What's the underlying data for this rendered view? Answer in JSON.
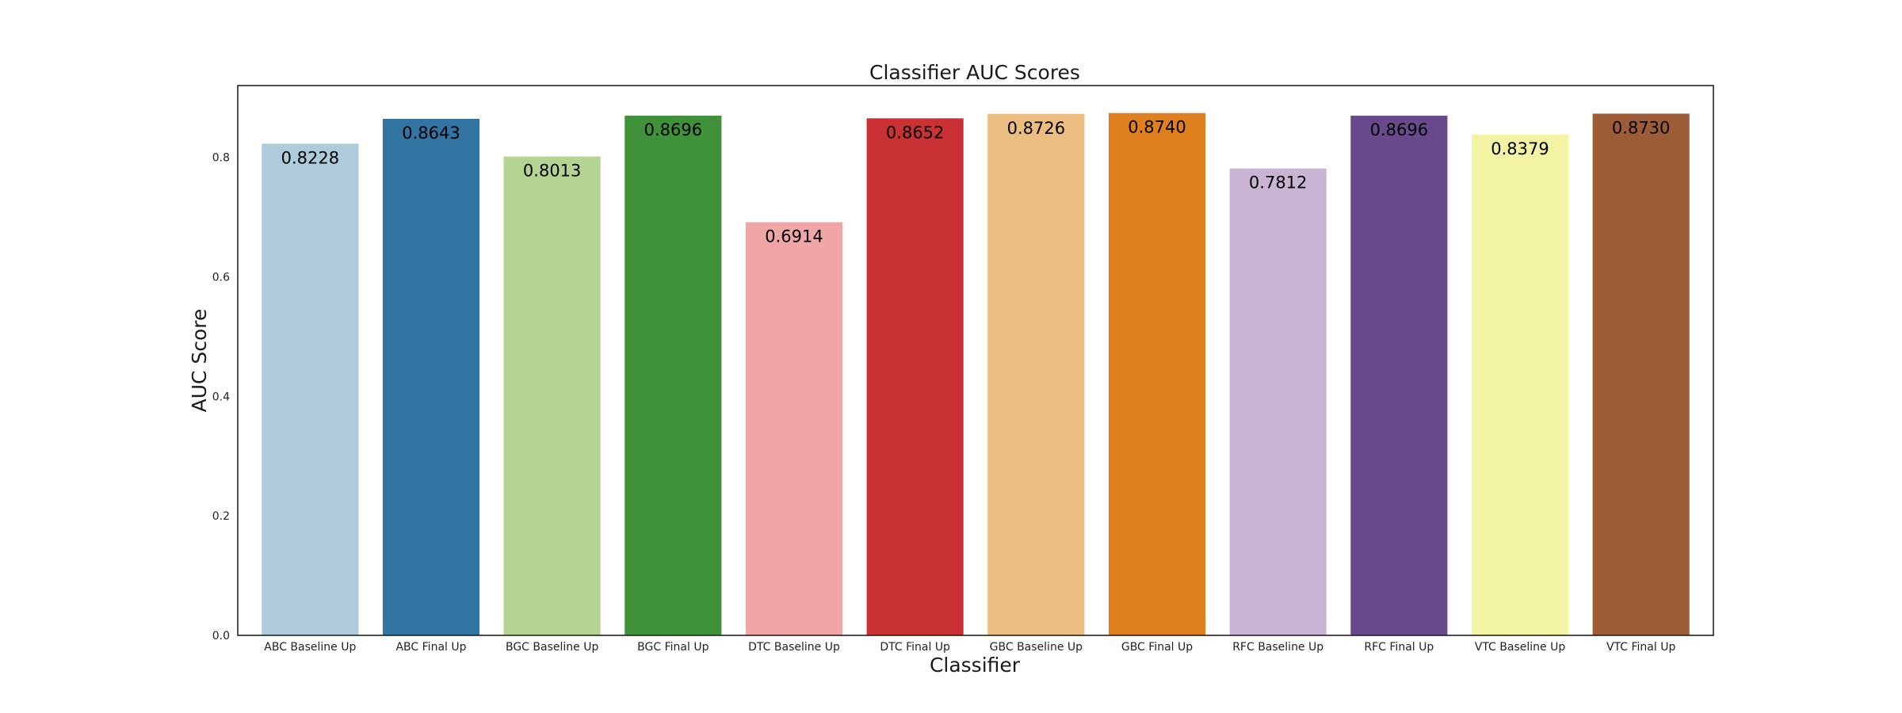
{
  "chart_data": {
    "type": "bar",
    "title": "Classifier AUC Scores",
    "xlabel": "Classifier",
    "ylabel": "AUC Score",
    "ylim": [
      0,
      0.92
    ],
    "yticks": [
      "0.0",
      "0.2",
      "0.4",
      "0.6",
      "0.8"
    ],
    "grid": false,
    "legend": "none",
    "categories": [
      "ABC Baseline Up",
      "ABC Final Up",
      "BGC Baseline Up",
      "BGC Final Up",
      "DTC Baseline Up",
      "DTC Final Up",
      "GBC Baseline Up",
      "GBC Final Up",
      "RFC Baseline Up",
      "RFC Final Up",
      "VTC Baseline Up",
      "VTC Final Up"
    ],
    "values": [
      0.8228,
      0.8643,
      0.8013,
      0.8696,
      0.6914,
      0.8652,
      0.8726,
      0.874,
      0.7812,
      0.8696,
      0.8379,
      0.873
    ],
    "value_labels": [
      "0.8228",
      "0.8643",
      "0.8013",
      "0.8696",
      "0.6914",
      "0.8652",
      "0.8726",
      "0.8740",
      "0.7812",
      "0.8696",
      "0.8379",
      "0.8730"
    ],
    "colors": [
      "#aecbdc",
      "#3274a2",
      "#b4d492",
      "#3f913a",
      "#f0a6a6",
      "#c93135",
      "#ebbd80",
      "#e07f1e",
      "#c9b5d3",
      "#684a8c",
      "#f2f3a3",
      "#9c5c37"
    ]
  }
}
